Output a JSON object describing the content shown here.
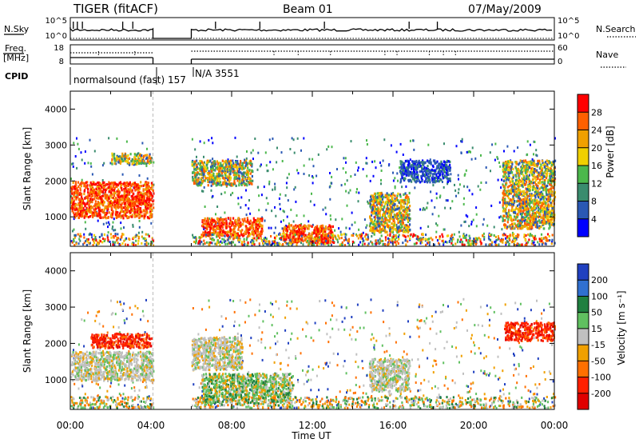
{
  "header": {
    "station": "TIGER (fitACF)",
    "beam": "Beam 01",
    "date": "07/May/2009"
  },
  "top_strip": {
    "nsky_label": "N.Sky",
    "nsky_ticks": [
      "10^5",
      "10^0"
    ],
    "nsearch_label": "N.Search",
    "freq_label": [
      "Freq.",
      "[MHz]"
    ],
    "freq_ticks": [
      "18",
      "8"
    ],
    "nave_ticks": [
      "60",
      "0"
    ],
    "nave_label": "Nave",
    "cpid_label": "CPID",
    "cpid_segments": [
      "normalsound (fast) 157",
      "N/A 3551"
    ]
  },
  "colors": {
    "power": [
      "#0000ff",
      "#2a58b4",
      "#3a8c6e",
      "#4cb84c",
      "#f0d000",
      "#f0a000",
      "#ff6000",
      "#ff0000"
    ],
    "velocity": [
      "#2040c0",
      "#3070d0",
      "#208040",
      "#60c060",
      "#c0c0c0",
      "#f0a000",
      "#ff7000",
      "#ff2000",
      "#e00000"
    ]
  },
  "chart_data": [
    {
      "type": "heatmap",
      "title": "",
      "xlabel": "Time UT",
      "ylabel": "Slant Range [km]",
      "xlim": [
        0,
        24
      ],
      "ylim": [
        180,
        4500
      ],
      "x_ticks": [
        "00:00",
        "04:00",
        "08:00",
        "12:00",
        "16:00",
        "20:00",
        "00:00"
      ],
      "y_ticks": [
        "1000",
        "2000",
        "3000",
        "4000"
      ],
      "colorbar_label": "Power [dB]",
      "colorbar_ticks": [
        "4",
        "8",
        "12",
        "16",
        "20",
        "24",
        "28"
      ],
      "data_gaps_hours": [
        [
          4.1,
          6.0
        ]
      ],
      "scatter_regions": [
        {
          "t": [
            0.0,
            4.1
          ],
          "range_km": [
            1000,
            2000
          ],
          "level": "red"
        },
        {
          "t": [
            2.0,
            4.0
          ],
          "range_km": [
            2500,
            2800
          ],
          "level": "mixed"
        },
        {
          "t": [
            6.0,
            9.0
          ],
          "range_km": [
            1900,
            2600
          ],
          "level": "mixed"
        },
        {
          "t": [
            6.5,
            9.5
          ],
          "range_km": [
            500,
            1000
          ],
          "level": "red"
        },
        {
          "t": [
            10.5,
            13.0
          ],
          "range_km": [
            300,
            800
          ],
          "level": "red"
        },
        {
          "t": [
            14.8,
            16.8
          ],
          "range_km": [
            600,
            1700
          ],
          "level": "orange"
        },
        {
          "t": [
            16.3,
            18.8
          ],
          "range_km": [
            2000,
            2600
          ],
          "level": "blue"
        },
        {
          "t": [
            21.4,
            24.0
          ],
          "range_km": [
            700,
            2600
          ],
          "level": "orange"
        }
      ]
    },
    {
      "type": "heatmap",
      "title": "",
      "xlabel": "Time UT",
      "ylabel": "Slant Range [km]",
      "xlim": [
        0,
        24
      ],
      "ylim": [
        180,
        4500
      ],
      "x_ticks": [
        "00:00",
        "04:00",
        "08:00",
        "12:00",
        "16:00",
        "20:00",
        "00:00"
      ],
      "y_ticks": [
        "1000",
        "2000",
        "3000",
        "4000"
      ],
      "colorbar_label": "Velocity [m s⁻¹]",
      "colorbar_ticks": [
        "200",
        "100",
        "50",
        "15",
        "-15",
        "-50",
        "-100",
        "-200"
      ],
      "data_gaps_hours": [
        [
          4.1,
          6.0
        ]
      ],
      "scatter_regions": [
        {
          "t": [
            0.0,
            4.1
          ],
          "range_km": [
            1000,
            1800
          ],
          "level": "grey"
        },
        {
          "t": [
            1.0,
            4.0
          ],
          "range_km": [
            1900,
            2300
          ],
          "level": "red"
        },
        {
          "t": [
            6.0,
            8.5
          ],
          "range_km": [
            1300,
            2200
          ],
          "level": "grey"
        },
        {
          "t": [
            6.5,
            11.0
          ],
          "range_km": [
            400,
            1200
          ],
          "level": "green"
        },
        {
          "t": [
            14.8,
            16.8
          ],
          "range_km": [
            700,
            1600
          ],
          "level": "grey"
        },
        {
          "t": [
            21.5,
            24.0
          ],
          "range_km": [
            2100,
            2600
          ],
          "level": "red"
        }
      ]
    }
  ]
}
